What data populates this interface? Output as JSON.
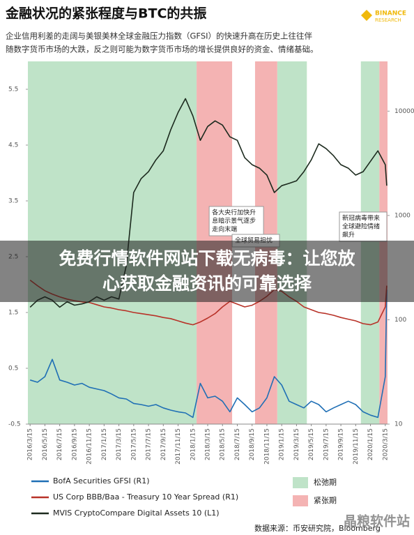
{
  "chart_data": {
    "type": "line",
    "title": "金融状况的紧张程度与BTC的共振",
    "subtitle": [
      "企业信用利差的走阔与美银美林全球金融压力指数（GFSI）的快速升高在历史上往往伴",
      "随数字货币市场的大跌，反之则可能为数字货币市场的增长提供良好的资金、情绪基础。"
    ],
    "logo": [
      "BINANCE",
      "RESEARCH"
    ],
    "xlim": [
      -0.15,
      24.15
    ],
    "xticks": [
      {
        "value": 0,
        "label": "2016/3/15"
      },
      {
        "value": 1,
        "label": "2016/5/15"
      },
      {
        "value": 2,
        "label": "2016/7/15"
      },
      {
        "value": 3,
        "label": "2016/9/15"
      },
      {
        "value": 4,
        "label": "2016/11/15"
      },
      {
        "value": 5,
        "label": "2017/1/15"
      },
      {
        "value": 6,
        "label": "2017/3/15"
      },
      {
        "value": 7,
        "label": "2017/5/15"
      },
      {
        "value": 8,
        "label": "2017/7/15"
      },
      {
        "value": 9,
        "label": "2017/9/15"
      },
      {
        "value": 10,
        "label": "2017/11/15"
      },
      {
        "value": 11,
        "label": "2018/1/15"
      },
      {
        "value": 12,
        "label": "2018/3/15"
      },
      {
        "value": 13,
        "label": "2018/5/15"
      },
      {
        "value": 14,
        "label": "2018/7/15"
      },
      {
        "value": 15,
        "label": "2018/9/15"
      },
      {
        "value": 16,
        "label": "2018/11/15"
      },
      {
        "value": 17,
        "label": "2019/1/15"
      },
      {
        "value": 18,
        "label": "2019/3/15"
      },
      {
        "value": 19,
        "label": "2019/5/15"
      },
      {
        "value": 20,
        "label": "2019/7/15"
      },
      {
        "value": 21,
        "label": "2019/9/15"
      },
      {
        "value": 22,
        "label": "2019/11/15"
      },
      {
        "value": 23,
        "label": "2020/1/15"
      },
      {
        "value": 24,
        "label": "2020/3/15"
      }
    ],
    "ylim": [
      -0.5,
      6
    ],
    "yticks": [
      5.5,
      4.5,
      3.5,
      2.5,
      1.5,
      0.5,
      -0.5
    ],
    "y2lim": [
      10,
      30000
    ],
    "y2log": true,
    "y2ticks": [
      10000,
      1000,
      100,
      10
    ],
    "x": [
      0,
      0.5,
      1,
      1.5,
      2,
      2.5,
      3,
      3.5,
      4,
      4.5,
      5,
      5.5,
      6,
      6.5,
      7,
      7.5,
      8,
      8.5,
      9,
      9.5,
      10,
      10.5,
      11,
      11.5,
      12,
      12.5,
      13,
      13.5,
      14,
      14.5,
      15,
      15.5,
      16,
      16.5,
      17,
      17.5,
      18,
      18.5,
      19,
      19.5,
      20,
      20.5,
      21,
      21.5,
      22,
      22.5,
      23,
      23.5,
      24,
      24.1
    ],
    "bands": [
      {
        "name": "松弛期",
        "color": "#bfe3c8",
        "spans": [
          [
            -0.15,
            11.25
          ],
          [
            16.7,
            18.7
          ],
          [
            22.35,
            23.6
          ]
        ]
      },
      {
        "name": "紧张期",
        "color": "#f4b3b3",
        "spans": [
          [
            11.25,
            13.65
          ],
          [
            15.2,
            16.7
          ],
          [
            23.6,
            24.15
          ]
        ]
      }
    ],
    "series": [
      {
        "name": "BofA Securities GFSI (R1)",
        "color": "#1f6fb5",
        "values": [
          0.29,
          0.25,
          0.35,
          0.66,
          0.29,
          0.25,
          0.2,
          0.23,
          0.16,
          0.13,
          0.1,
          0.04,
          -0.03,
          -0.05,
          -0.13,
          -0.15,
          -0.18,
          -0.15,
          -0.21,
          -0.25,
          -0.28,
          -0.3,
          -0.38,
          0.23,
          -0.03,
          0.0,
          -0.09,
          -0.28,
          -0.03,
          -0.15,
          -0.28,
          -0.21,
          -0.03,
          0.35,
          0.2,
          -0.09,
          -0.15,
          -0.21,
          -0.09,
          -0.15,
          -0.28,
          -0.21,
          -0.15,
          -0.09,
          -0.15,
          -0.28,
          -0.34,
          -0.38,
          0.35,
          1.91
        ]
      },
      {
        "name": "US Corp BBB/Baa - Treasury 10 Year Spread (R1)",
        "color": "#b83228",
        "values": [
          2.08,
          1.98,
          1.89,
          1.83,
          1.78,
          1.74,
          1.71,
          1.69,
          1.68,
          1.64,
          1.6,
          1.58,
          1.55,
          1.53,
          1.5,
          1.48,
          1.46,
          1.44,
          1.41,
          1.39,
          1.35,
          1.31,
          1.28,
          1.33,
          1.4,
          1.48,
          1.6,
          1.7,
          1.65,
          1.6,
          1.63,
          1.7,
          1.79,
          1.91,
          1.88,
          1.78,
          1.7,
          1.6,
          1.55,
          1.5,
          1.48,
          1.45,
          1.41,
          1.38,
          1.35,
          1.3,
          1.28,
          1.33,
          1.6,
          1.98
        ]
      },
      {
        "name": "MVIS CryptoCompare Digital Assets 10 (L1)",
        "color": "#1c2a1e",
        "axis": "y2",
        "values": [
          132,
          154,
          166,
          154,
          132,
          149,
          138,
          142,
          149,
          166,
          154,
          166,
          158,
          331,
          1660,
          2250,
          2630,
          3410,
          4170,
          6610,
          9700,
          13180,
          8980,
          5250,
          7130,
          8070,
          7350,
          5670,
          5250,
          3580,
          3070,
          2840,
          2440,
          1660,
          1930,
          2030,
          2150,
          2630,
          3410,
          4860,
          4370,
          3740,
          3070,
          2840,
          2440,
          2630,
          3310,
          4170,
          3070,
          1930
        ]
      }
    ],
    "annotations": [
      {
        "lines": [
          "各大央行加快升",
          "息暗示景气逐步",
          "走向末端"
        ],
        "x": 12.1,
        "y": 3.4
      },
      {
        "lines": [
          "全球贸易担忧"
        ],
        "x": 13.65,
        "y": 2.9
      },
      {
        "lines": [
          "新冠病毒带来",
          "全球避险情绪",
          "飙升"
        ],
        "x": 20.9,
        "y": 3.3
      }
    ],
    "source": "数据来源：币安研究院，Bloomberg"
  },
  "banner": {
    "lines": [
      "免费行情软件网站下载无病毒：让您放",
      "心获取金融资讯的可靠选择"
    ]
  },
  "watermark": "晶粮软件站"
}
